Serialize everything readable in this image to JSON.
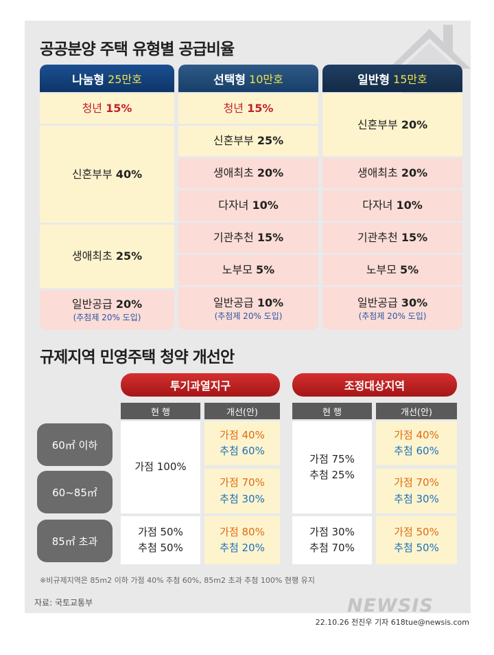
{
  "section1": {
    "title": "공공분양 주택 유형별 공급비율",
    "columns": [
      {
        "name": "나눔형",
        "count": "25만호",
        "cells": [
          {
            "label": "청년",
            "value": "15%",
            "highlight": true
          },
          {
            "label": "신혼부부",
            "value": "40%"
          },
          {
            "label": "생애최초",
            "value": "25%"
          },
          {
            "label": "일반공급",
            "value": "20%",
            "sub": "(추첨제 20% 도입)"
          }
        ]
      },
      {
        "name": "선택형",
        "count": "10만호",
        "cells": [
          {
            "label": "청년",
            "value": "15%",
            "highlight": true
          },
          {
            "label": "신혼부부",
            "value": "25%"
          },
          {
            "label": "생애최초",
            "value": "20%"
          },
          {
            "label": "다자녀",
            "value": "10%"
          },
          {
            "label": "기관추천",
            "value": "15%"
          },
          {
            "label": "노부모",
            "value": "5%"
          },
          {
            "label": "일반공급",
            "value": "10%",
            "sub": "(추첨제 20% 도입)"
          }
        ]
      },
      {
        "name": "일반형",
        "count": "15만호",
        "cells": [
          {
            "label": "신혼부부",
            "value": "20%"
          },
          {
            "label": "생애최초",
            "value": "20%"
          },
          {
            "label": "다자녀",
            "value": "10%"
          },
          {
            "label": "기관추천",
            "value": "15%"
          },
          {
            "label": "노부모",
            "value": "5%"
          },
          {
            "label": "일반공급",
            "value": "30%",
            "sub": "(추첨제 20% 도입)"
          }
        ]
      }
    ]
  },
  "section2": {
    "title": "규제지역 민영주택 청약 개선안",
    "regions": [
      "투기과열지구",
      "조정대상지역"
    ],
    "sub_headers": [
      "현 행",
      "개선(안)"
    ],
    "rows": [
      "60㎡ 이하",
      "60~85㎡",
      "85㎡ 초과"
    ],
    "speculation": {
      "current_small": {
        "ga": "가점 100%"
      },
      "current_large": {
        "ga": "가점 50%",
        "chu": "추첨 50%"
      },
      "proposed": [
        {
          "ga": "가점 40%",
          "chu": "추첨 60%"
        },
        {
          "ga": "가점 70%",
          "chu": "추첨 30%"
        },
        {
          "ga": "가점 80%",
          "chu": "추첨 20%"
        }
      ]
    },
    "adjustment": {
      "current_small": {
        "ga": "가점 75%",
        "chu": "추첨 25%"
      },
      "current_large": {
        "ga": "가점 30%",
        "chu": "추첨 70%"
      },
      "proposed": [
        {
          "ga": "가점 40%",
          "chu": "추첨 60%"
        },
        {
          "ga": "가점 70%",
          "chu": "추첨 30%"
        },
        {
          "ga": "가점 50%",
          "chu": "추첨 50%"
        }
      ]
    }
  },
  "note": "※비규제지역은 85m2 이하 가점 40% 추첨 60%, 85m2 초과 추첨 100% 현행 유지",
  "source": "자료: 국토교통부",
  "logo": "NEWSIS",
  "credit": "22.10.26 전진우 기자 618tue@newsis.com",
  "colors": {
    "header_blue": "#1c4f91",
    "count_yellow": "#f2e34a",
    "region_red": "#c3202a",
    "cell_yellow": "#fdf4cd",
    "cell_pink": "#fbdcd6",
    "ga_orange": "#e06a12",
    "chu_blue": "#1f6fba"
  },
  "icons": [
    "house-outline-icon"
  ]
}
